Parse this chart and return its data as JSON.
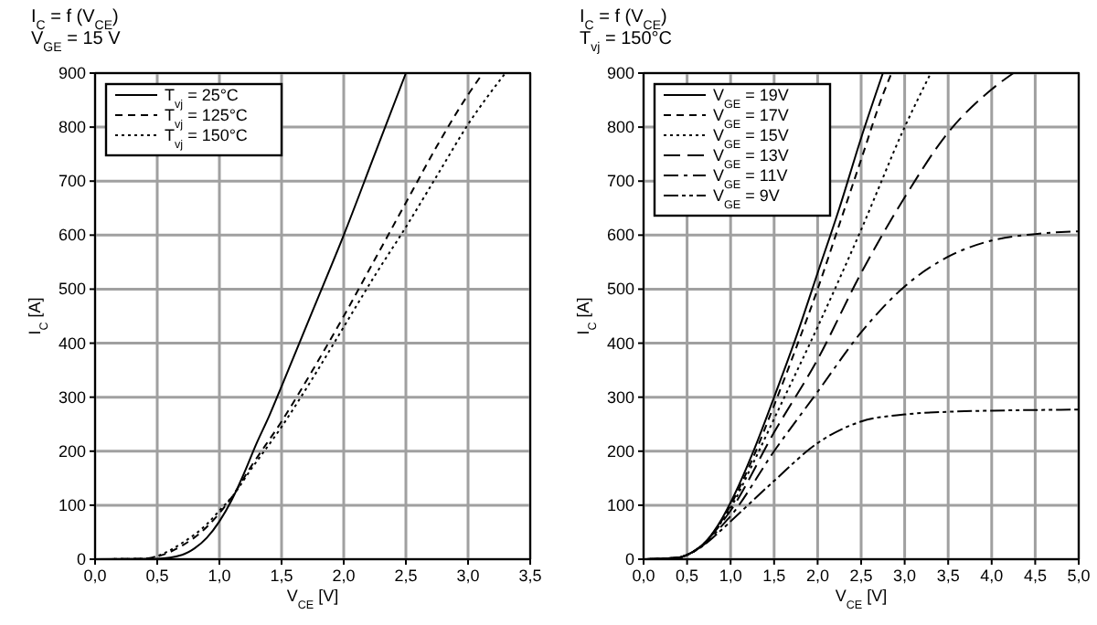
{
  "chart_data": [
    {
      "type": "line",
      "title": "I$_{C}$ = f (V$_{CE}$)",
      "subtitle": "V$_{GE}$ = 15 V",
      "xlabel": "V$_{CE}$ [V]",
      "ylabel": "I$_{C}$ [A]",
      "xlim": [
        0,
        3.5
      ],
      "xticks": [
        {
          "value": 0,
          "label": "0,0"
        },
        {
          "value": 0.5,
          "label": "0,5"
        },
        {
          "value": 1,
          "label": "1,0"
        },
        {
          "value": 1.5,
          "label": "1,5"
        },
        {
          "value": 2,
          "label": "2,0"
        },
        {
          "value": 2.5,
          "label": "2,5"
        },
        {
          "value": 3,
          "label": "3,0"
        },
        {
          "value": 3.5,
          "label": "3,5"
        }
      ],
      "ylim": [
        0,
        900
      ],
      "yticks": [
        0,
        100,
        200,
        300,
        400,
        500,
        600,
        700,
        800,
        900
      ],
      "grid": true,
      "legend": "top left",
      "series": [
        {
          "name": "T$_{vj}$ = 25°C",
          "color": "#000000",
          "line_style": "solid",
          "x": [
            0,
            0.5,
            0.7,
            0.8,
            0.9,
            1.0,
            1.1,
            1.2,
            1.3,
            1.4,
            1.5,
            1.75,
            2.0,
            2.25,
            2.5
          ],
          "values": [
            0,
            1,
            8,
            20,
            40,
            70,
            110,
            160,
            215,
            265,
            320,
            460,
            600,
            750,
            900
          ]
        },
        {
          "name": "T$_{vj}$ = 125°C",
          "color": "#000000",
          "line_style": "dashed",
          "x": [
            0,
            0.4,
            0.5,
            0.7,
            0.9,
            1.0,
            1.1,
            1.25,
            1.5,
            1.75,
            2.0,
            2.25,
            2.5,
            2.75,
            3.0,
            3.12
          ],
          "values": [
            0,
            1,
            5,
            25,
            60,
            85,
            115,
            170,
            255,
            350,
            450,
            555,
            660,
            765,
            860,
            900
          ]
        },
        {
          "name": "T$_{vj}$ = 150°C",
          "color": "#000000",
          "line_style": "dotted",
          "x": [
            0,
            0.4,
            0.5,
            0.7,
            0.9,
            1.0,
            1.1,
            1.25,
            1.5,
            1.75,
            2.0,
            2.25,
            2.5,
            2.75,
            3.0,
            3.3
          ],
          "values": [
            0,
            1,
            6,
            30,
            65,
            90,
            115,
            165,
            245,
            335,
            430,
            525,
            615,
            710,
            805,
            900
          ]
        }
      ]
    },
    {
      "type": "line",
      "title": "I$_{C}$ = f (V$_{CE}$)",
      "subtitle": "T$_{vj}$ = 150°C",
      "xlabel": "V$_{CE}$ [V]",
      "ylabel": "I$_{C}$ [A]",
      "xlim": [
        0,
        5
      ],
      "xticks": [
        {
          "value": 0,
          "label": "0,0"
        },
        {
          "value": 0.5,
          "label": "0,5"
        },
        {
          "value": 1,
          "label": "1,0"
        },
        {
          "value": 1.5,
          "label": "1,5"
        },
        {
          "value": 2,
          "label": "2,0"
        },
        {
          "value": 2.5,
          "label": "2,5"
        },
        {
          "value": 3,
          "label": "3,0"
        },
        {
          "value": 3.5,
          "label": "3,5"
        },
        {
          "value": 4,
          "label": "4,0"
        },
        {
          "value": 4.5,
          "label": "4,5"
        },
        {
          "value": 5,
          "label": "5,0"
        }
      ],
      "ylim": [
        0,
        900
      ],
      "yticks": [
        0,
        100,
        200,
        300,
        400,
        500,
        600,
        700,
        800,
        900
      ],
      "grid": true,
      "legend": "top left",
      "series": [
        {
          "name": "V$_{GE}$ = 19V",
          "color": "#000000",
          "line_style": "solid",
          "x": [
            0,
            0.4,
            0.5,
            0.7,
            0.9,
            1.0,
            1.25,
            1.5,
            1.75,
            2.0,
            2.25,
            2.5,
            2.75
          ],
          "values": [
            0,
            3,
            8,
            30,
            75,
            105,
            195,
            300,
            410,
            530,
            650,
            780,
            900
          ]
        },
        {
          "name": "V$_{GE}$ = 17V",
          "color": "#000000",
          "line_style": "dashed",
          "x": [
            0,
            0.4,
            0.5,
            0.7,
            0.9,
            1.0,
            1.25,
            1.5,
            1.75,
            2.0,
            2.25,
            2.5,
            2.75,
            2.85
          ],
          "values": [
            0,
            3,
            8,
            30,
            72,
            100,
            185,
            285,
            390,
            500,
            620,
            740,
            860,
            900
          ]
        },
        {
          "name": "V$_{GE}$ = 15V",
          "color": "#000000",
          "line_style": "dotted",
          "x": [
            0,
            0.4,
            0.5,
            0.7,
            0.9,
            1.0,
            1.25,
            1.5,
            2.0,
            2.5,
            3.0,
            3.3
          ],
          "values": [
            0,
            3,
            8,
            30,
            70,
            95,
            175,
            260,
            430,
            610,
            800,
            900
          ]
        },
        {
          "name": "V$_{GE}$ = 13V",
          "color": "#000000",
          "line_style": "longdash",
          "x": [
            0,
            0.4,
            0.5,
            0.7,
            0.9,
            1.0,
            1.5,
            2.0,
            2.5,
            3.0,
            3.5,
            4.0,
            4.25
          ],
          "values": [
            0,
            3,
            8,
            30,
            68,
            90,
            235,
            370,
            530,
            670,
            790,
            870,
            900
          ]
        },
        {
          "name": "V$_{GE}$ = 11V",
          "color": "#000000",
          "line_style": "dashdot",
          "x": [
            0,
            0.4,
            0.5,
            0.7,
            0.9,
            1.0,
            1.5,
            2.0,
            2.5,
            3.0,
            3.5,
            4.0,
            4.5,
            5.0
          ],
          "values": [
            0,
            3,
            8,
            28,
            62,
            80,
            200,
            310,
            420,
            505,
            560,
            590,
            602,
            607
          ]
        },
        {
          "name": "V$_{GE}$ = 9V",
          "color": "#000000",
          "line_style": "dashdotdot",
          "x": [
            0,
            0.4,
            0.5,
            0.7,
            0.9,
            1.0,
            1.5,
            2.0,
            2.5,
            3.0,
            3.5,
            4.0,
            5.0
          ],
          "values": [
            0,
            3,
            8,
            27,
            55,
            70,
            145,
            215,
            255,
            268,
            273,
            275,
            277
          ]
        }
      ]
    }
  ]
}
